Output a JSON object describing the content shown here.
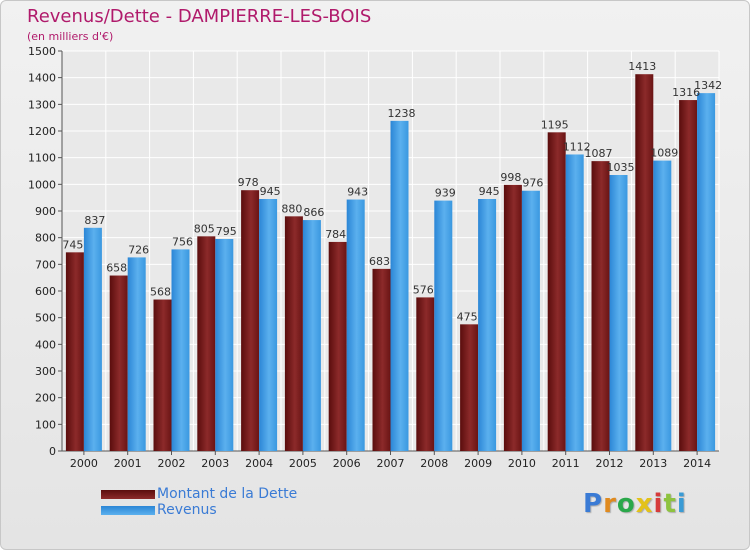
{
  "chart_data": {
    "type": "bar",
    "title": "Revenus/Dette - DAMPIERRE-LES-BOIS",
    "subtitle": "(en milliers d'€)",
    "xlabel": "",
    "ylabel": "",
    "ylim": [
      0,
      1500
    ],
    "yticks": [
      0,
      100,
      200,
      300,
      400,
      500,
      600,
      700,
      800,
      900,
      1000,
      1100,
      1200,
      1300,
      1400,
      1500
    ],
    "grid": true,
    "legend_position": "bottom-left",
    "categories": [
      "2000",
      "2001",
      "2002",
      "2003",
      "2004",
      "2005",
      "2006",
      "2007",
      "2008",
      "2009",
      "2010",
      "2011",
      "2012",
      "2013",
      "2014"
    ],
    "series": [
      {
        "name": "Montant de la Dette",
        "color": "#7a1a1a",
        "values": [
          745,
          658,
          568,
          805,
          978,
          880,
          784,
          683,
          576,
          475,
          998,
          1195,
          1087,
          1413,
          1316
        ]
      },
      {
        "name": "Revenus",
        "color": "#3f9be3",
        "values": [
          837,
          726,
          756,
          795,
          945,
          866,
          943,
          1238,
          939,
          945,
          976,
          1112,
          1035,
          1089,
          1342
        ]
      }
    ]
  },
  "logo": {
    "text": "Proxiti",
    "icon": "proxiti-logo",
    "colors": [
      "#3a7bd5",
      "#e08a1e",
      "#2aa84a",
      "#e3c21a",
      "#d63b3b",
      "#8ec33f",
      "#3a9bd5"
    ]
  }
}
